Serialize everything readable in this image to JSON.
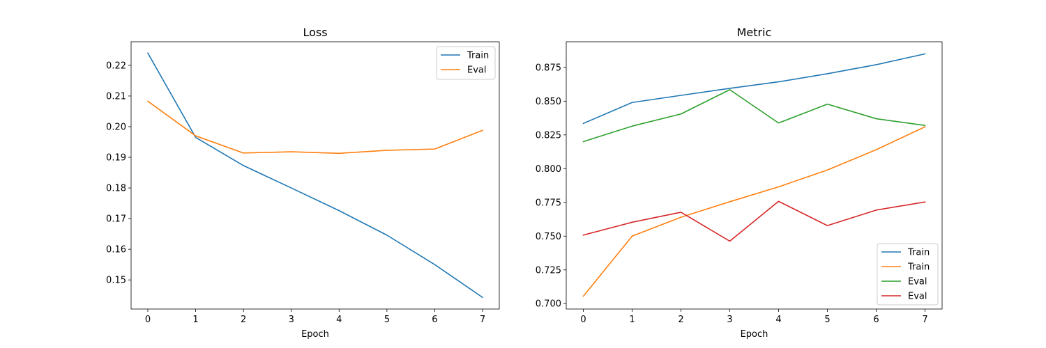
{
  "chart_data": [
    {
      "type": "line",
      "title": "Loss",
      "xlabel": "Epoch",
      "ylabel": "",
      "x": [
        0,
        1,
        2,
        3,
        4,
        5,
        6,
        7
      ],
      "xlim": [
        -0.35,
        7.35
      ],
      "ylim": [
        0.1405,
        0.2277
      ],
      "xticks": [
        0,
        1,
        2,
        3,
        4,
        5,
        6,
        7
      ],
      "yticks": [
        0.15,
        0.16,
        0.17,
        0.18,
        0.19,
        0.2,
        0.21,
        0.22
      ],
      "ytick_labels": [
        "0.15",
        "0.16",
        "0.17",
        "0.18",
        "0.19",
        "0.20",
        "0.21",
        "0.22"
      ],
      "legend_position": "top-right",
      "series": [
        {
          "name": "Train",
          "color": "#1f77b4",
          "values": [
            0.224,
            0.1965,
            0.1873,
            0.18,
            0.1726,
            0.1646,
            0.155,
            0.1443
          ]
        },
        {
          "name": "Eval",
          "color": "#ff7f0e",
          "values": [
            0.2083,
            0.197,
            0.1914,
            0.1918,
            0.1913,
            0.1923,
            0.1927,
            0.1988
          ]
        }
      ]
    },
    {
      "type": "line",
      "title": "Metric",
      "xlabel": "Epoch",
      "ylabel": "",
      "x": [
        0,
        1,
        2,
        3,
        4,
        5,
        6,
        7
      ],
      "xlim": [
        -0.35,
        7.35
      ],
      "ylim": [
        0.696,
        0.894
      ],
      "xticks": [
        0,
        1,
        2,
        3,
        4,
        5,
        6,
        7
      ],
      "yticks": [
        0.7,
        0.725,
        0.75,
        0.775,
        0.8,
        0.825,
        0.85,
        0.875
      ],
      "ytick_labels": [
        "0.700",
        "0.725",
        "0.750",
        "0.775",
        "0.800",
        "0.825",
        "0.850",
        "0.875"
      ],
      "legend_position": "bottom-right",
      "series": [
        {
          "name": "Train",
          "color": "#1f77b4",
          "values": [
            0.8335,
            0.849,
            0.8543,
            0.8595,
            0.8643,
            0.8703,
            0.877,
            0.885
          ]
        },
        {
          "name": "Train",
          "color": "#ff7f0e",
          "values": [
            0.7055,
            0.75,
            0.764,
            0.7755,
            0.7865,
            0.799,
            0.814,
            0.831
          ]
        },
        {
          "name": "Eval",
          "color": "#2ca02c",
          "values": [
            0.82,
            0.8315,
            0.8405,
            0.8585,
            0.8338,
            0.8478,
            0.837,
            0.832
          ]
        },
        {
          "name": "Eval",
          "color": "#d62728",
          "values": [
            0.7508,
            0.7603,
            0.7677,
            0.7463,
            0.7758,
            0.7578,
            0.7693,
            0.7753
          ]
        }
      ]
    }
  ]
}
